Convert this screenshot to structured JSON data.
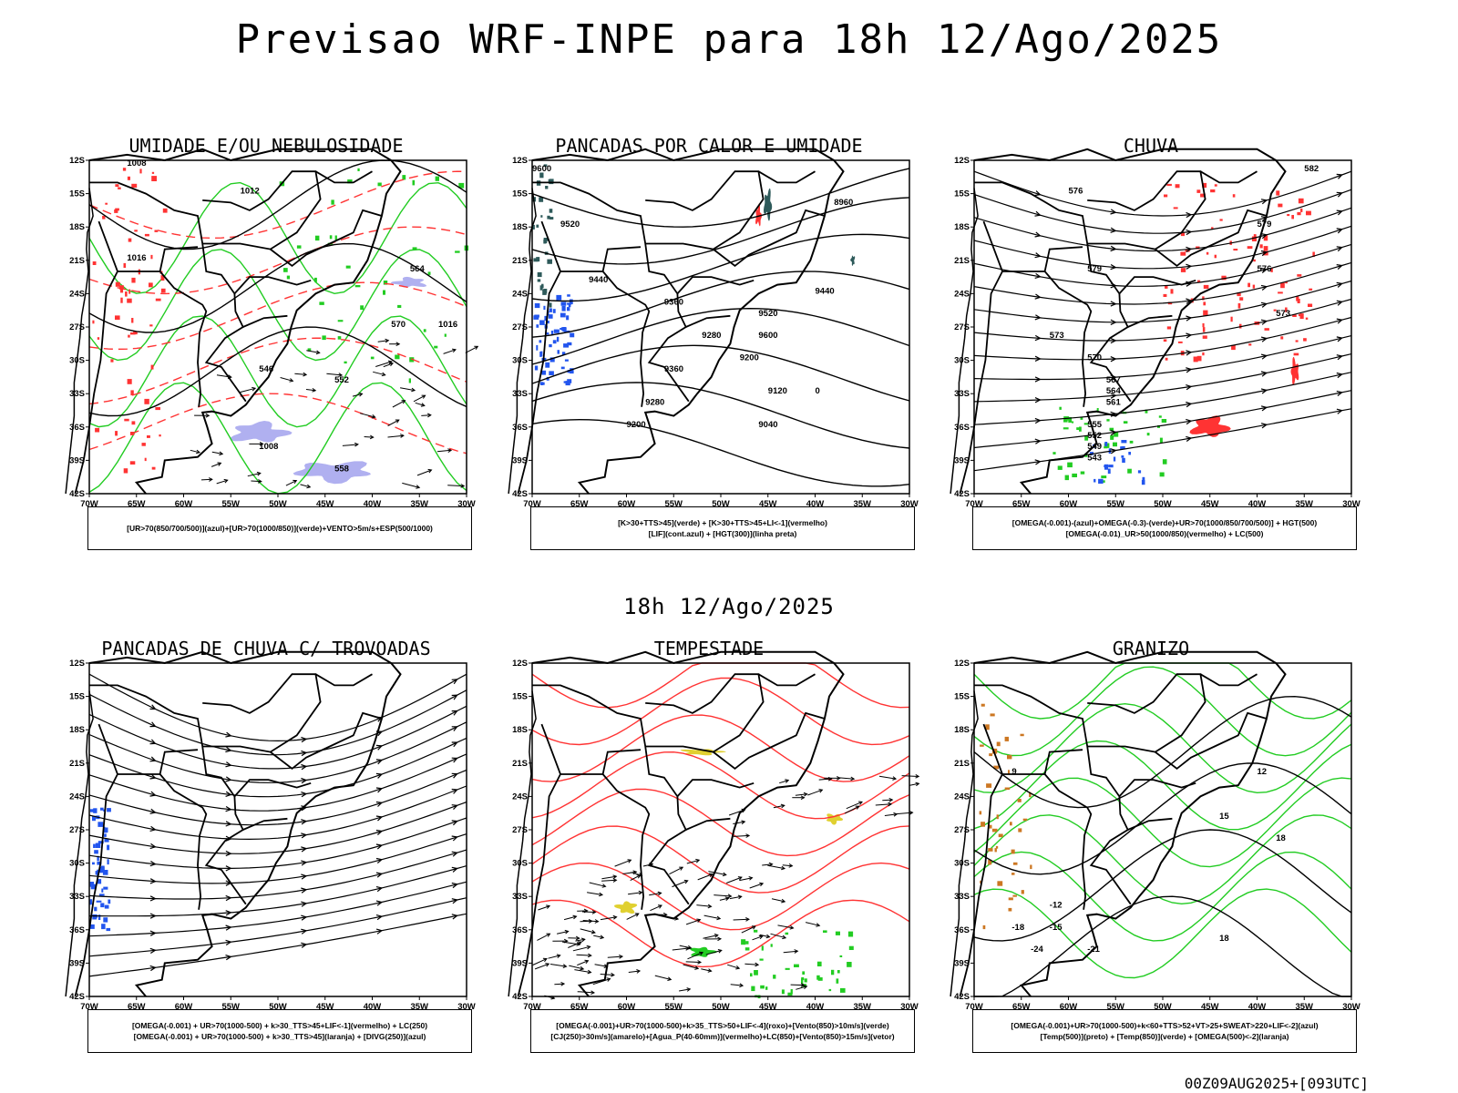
{
  "header": {
    "title": "Previsao WRF-INPE  para 18h 12/Ago/2025"
  },
  "mid": {
    "title": "18h 12/Ago/2025"
  },
  "footer": {
    "text": "00Z09AUG2025+[093UTC]"
  },
  "axes": {
    "lat_labels": [
      "12S",
      "15S",
      "18S",
      "21S",
      "24S",
      "27S",
      "30S",
      "33S",
      "36S",
      "39S",
      "42S"
    ],
    "lon_labels": [
      "70W",
      "65W",
      "60W",
      "55W",
      "50W",
      "45W",
      "40W",
      "35W",
      "30W"
    ]
  },
  "colors": {
    "red": "#ff3333",
    "green": "#22cc22",
    "blue": "#2255ee",
    "lavender": "#b0b0f0",
    "yellow": "#e0d030",
    "teal": "#2e5a5a",
    "orange": "#cc7722"
  },
  "panels": [
    {
      "id": "umidade",
      "title": "UMIDADE E/OU NEBULOSIDADE",
      "legend": [
        "[UR>70(850/700/500)](azul)+[UR>70(1000/850)](verde)+VENTO>5m/s+ESP(500/1000)"
      ],
      "labels": [
        "1008",
        "1012",
        "1016",
        "564",
        "570",
        "552",
        "546",
        "558",
        "1008",
        "1016"
      ]
    },
    {
      "id": "pancadas-calor",
      "title": "PANCADAS POR CALOR E UMIDADE",
      "legend": [
        "[K>30+TTS>45](verde) + [K>30+TTS>45+LI<-1](vermelho)",
        "[LIF](cont.azul) + [HGT(300)](linha preta)"
      ],
      "labels": [
        "9600",
        "9520",
        "9440",
        "9360",
        "9280",
        "9200",
        "9120",
        "9040",
        "8960",
        "9440",
        "9520",
        "9600",
        "9360",
        "9280",
        "9200",
        "0"
      ]
    },
    {
      "id": "chuva",
      "title": "CHUVA",
      "legend": [
        "[OMEGA(-0.001)-(azul)+OMEGA(-0.3)-(verde)+UR>70(1000/850/700/500)] + HGT(500)",
        "[OMEGA(-0.01)_UR>50(1000/850)(vermelho) + LC(500)"
      ],
      "labels": [
        "576",
        "579",
        "573",
        "570",
        "567",
        "564",
        "561",
        "555",
        "552",
        "549",
        "543",
        "582",
        "579",
        "576",
        "573"
      ]
    },
    {
      "id": "trovoadas",
      "title": "PANCADAS DE CHUVA C/ TROVOADAS",
      "legend": [
        "[OMEGA(-0.001) + UR>70(1000-500) + k>30_TTS>45+LIF<-1](vermelho) + LC(250)",
        "[OMEGA(-0.001) + UR>70(1000-500) + k>30_TTS>45](laranja) + [DIVG(250)](azul)"
      ],
      "labels": []
    },
    {
      "id": "tempestade",
      "title": "TEMPESTADE",
      "legend": [
        "[OMEGA(-0.001)+UR>70(1000-500)+k>35_TTS>50+LIF<-4](roxo)+[Vento(850)>10m/s](verde)",
        "[CJ(250)>30m/s](amarelo)+[Agua_P(40-60mm)](vermelho)+LC(850)+[Vento(850)>15m/s](vetor)"
      ],
      "labels": []
    },
    {
      "id": "granizo",
      "title": "GRANIZO",
      "legend": [
        "[OMEGA(-0.001)+UR>70(1000-500)+k<60+TTS>52+VT>25+SWEAT>220+LIF<-2](azul)",
        "[Temp(500)](preto) + [Temp(850)](verde) + [OMEGA(500)<-2](laranja)"
      ],
      "labels": [
        "-12",
        "-15",
        "-18",
        "-21",
        "-24",
        "12",
        "15",
        "18",
        "9",
        "18"
      ]
    }
  ]
}
